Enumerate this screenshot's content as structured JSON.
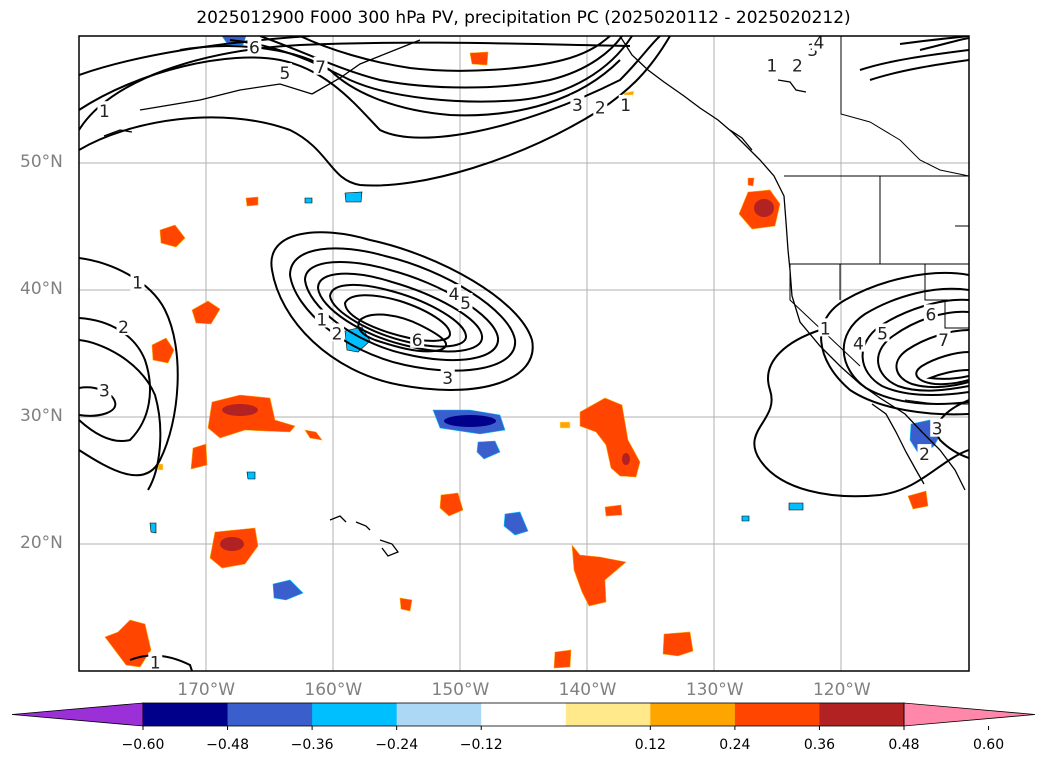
{
  "title": "2025012900 F000 300 hPa PV, precipitation PC (2025020112 - 2025020212)",
  "latitude_labels": [
    {
      "value": 50,
      "text": "50°N"
    },
    {
      "value": 40,
      "text": "40°N"
    },
    {
      "value": 30,
      "text": "30°N"
    },
    {
      "value": 20,
      "text": "20°N"
    }
  ],
  "longitude_labels": [
    {
      "value": -170,
      "text": "170°W"
    },
    {
      "value": -160,
      "text": "160°W"
    },
    {
      "value": -150,
      "text": "150°W"
    },
    {
      "value": -140,
      "text": "140°W"
    },
    {
      "value": -130,
      "text": "130°W"
    },
    {
      "value": -120,
      "text": "120°W"
    }
  ],
  "colorbar": {
    "extend": "both",
    "under_color": "#9b30d9",
    "over_color": "#ff88aa",
    "bins": [
      {
        "color": "#00008b"
      },
      {
        "color": "#3a5fcd"
      },
      {
        "color": "#00bfff"
      },
      {
        "color": "#add8f5"
      },
      {
        "color": "#ffffff"
      },
      {
        "color": "#ffe98a"
      },
      {
        "color": "#ffa500"
      },
      {
        "color": "#ff4500"
      },
      {
        "color": "#b22222"
      }
    ],
    "ticks": [
      "−0.60",
      "−0.48",
      "−0.36",
      "−0.24",
      "−0.12",
      "0.12",
      "0.24",
      "0.36",
      "0.48",
      "0.60"
    ]
  },
  "pv_contour_labels": [
    {
      "text": "6",
      "lon": -166.2,
      "lat": 59.0
    },
    {
      "text": "5",
      "lon": -163.8,
      "lat": 57.0
    },
    {
      "text": "7",
      "lon": -161.0,
      "lat": 57.5
    },
    {
      "text": "1",
      "lon": -178.0,
      "lat": 54.0
    },
    {
      "text": "3",
      "lon": -140.8,
      "lat": 54.5
    },
    {
      "text": "2",
      "lon": -139.0,
      "lat": 54.3
    },
    {
      "text": "1",
      "lon": -137.0,
      "lat": 54.5
    },
    {
      "text": "1",
      "lon": -125.5,
      "lat": 57.6
    },
    {
      "text": "2",
      "lon": -123.5,
      "lat": 57.6
    },
    {
      "text": "3",
      "lon": -122.3,
      "lat": 58.8
    },
    {
      "text": "4",
      "lon": -121.8,
      "lat": 59.4
    },
    {
      "text": "4",
      "lon": -150.5,
      "lat": 39.6
    },
    {
      "text": "5",
      "lon": -149.6,
      "lat": 38.9
    },
    {
      "text": "1",
      "lon": -160.9,
      "lat": 37.6
    },
    {
      "text": "2",
      "lon": -159.7,
      "lat": 36.5
    },
    {
      "text": "6",
      "lon": -153.4,
      "lat": 36.0
    },
    {
      "text": "3",
      "lon": -151.0,
      "lat": 33.0
    },
    {
      "text": "1",
      "lon": -175.4,
      "lat": 40.5
    },
    {
      "text": "2",
      "lon": -176.5,
      "lat": 37.0
    },
    {
      "text": "3",
      "lon": -178.0,
      "lat": 32.0
    },
    {
      "text": "1",
      "lon": -121.3,
      "lat": 36.9
    },
    {
      "text": "4",
      "lon": -118.7,
      "lat": 35.7
    },
    {
      "text": "5",
      "lon": -116.8,
      "lat": 36.5
    },
    {
      "text": "6",
      "lon": -113.0,
      "lat": 38.0
    },
    {
      "text": "7",
      "lon": -112.0,
      "lat": 36.0
    },
    {
      "text": "3",
      "lon": -112.5,
      "lat": 29.0
    },
    {
      "text": "2",
      "lon": -113.5,
      "lat": 27.0
    },
    {
      "text": "1",
      "lon": -174.0,
      "lat": 10.6
    }
  ]
}
